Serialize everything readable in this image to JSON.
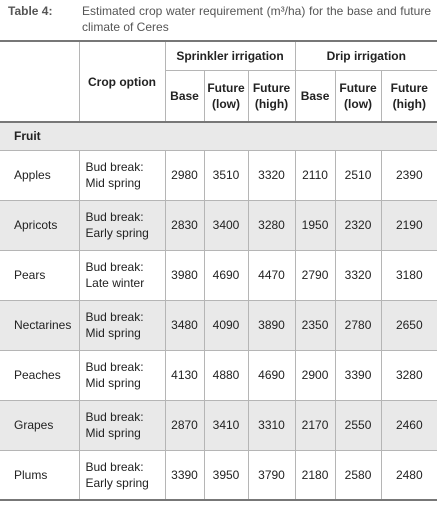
{
  "caption": {
    "label": "Table 4:",
    "text": "Estimated crop water requirement (m³/ha) for the base and future climate of Ceres"
  },
  "headers": {
    "crop_option": "Crop option",
    "sprinkler": "Sprinkler irrigation",
    "drip": "Drip irrigation",
    "base": "Base",
    "future_low_1": "Future",
    "future_low_2": "(low)",
    "future_high_1": "Future",
    "future_high_2": "(high)"
  },
  "section": "Fruit",
  "rows": [
    {
      "crop": "Apples",
      "opt1": "Bud break:",
      "opt2": "Mid spring",
      "s_base": "2980",
      "s_low": "3510",
      "s_high": "3320",
      "d_base": "2110",
      "d_low": "2510",
      "d_high": "2390"
    },
    {
      "crop": "Apricots",
      "opt1": "Bud break:",
      "opt2": "Early spring",
      "s_base": "2830",
      "s_low": "3400",
      "s_high": "3280",
      "d_base": "1950",
      "d_low": "2320",
      "d_high": "2190"
    },
    {
      "crop": "Pears",
      "opt1": "Bud break:",
      "opt2": "Late winter",
      "s_base": "3980",
      "s_low": "4690",
      "s_high": "4470",
      "d_base": "2790",
      "d_low": "3320",
      "d_high": "3180"
    },
    {
      "crop": "Nectarines",
      "opt1": "Bud break:",
      "opt2": "Mid spring",
      "s_base": "3480",
      "s_low": "4090",
      "s_high": "3890",
      "d_base": "2350",
      "d_low": "2780",
      "d_high": "2650"
    },
    {
      "crop": "Peaches",
      "opt1": "Bud break:",
      "opt2": "Mid spring",
      "s_base": "4130",
      "s_low": "4880",
      "s_high": "4690",
      "d_base": "2900",
      "d_low": "3390",
      "d_high": "3280"
    },
    {
      "crop": "Grapes",
      "opt1": "Bud break:",
      "opt2": "Mid spring",
      "s_base": "2870",
      "s_low": "3410",
      "s_high": "3310",
      "d_base": "2170",
      "d_low": "2550",
      "d_high": "2460"
    },
    {
      "crop": "Plums",
      "opt1": "Bud break:",
      "opt2": "Early spring",
      "s_base": "3390",
      "s_low": "3950",
      "s_high": "3790",
      "d_base": "2180",
      "d_low": "2580",
      "d_high": "2480"
    }
  ]
}
